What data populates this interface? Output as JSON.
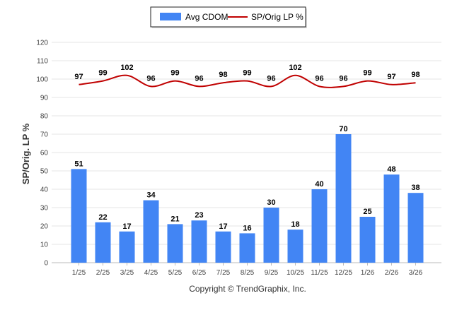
{
  "chart_data": {
    "type": "bar",
    "categories": [
      "1/25",
      "2/25",
      "3/25",
      "4/25",
      "5/25",
      "6/25",
      "7/25",
      "8/25",
      "9/25",
      "10/25",
      "11/25",
      "12/25",
      "1/26",
      "2/26",
      "3/26"
    ],
    "series": [
      {
        "name": "Avg CDOM",
        "type": "bar",
        "color": "#4285f4",
        "values": [
          51,
          22,
          17,
          34,
          21,
          23,
          17,
          16,
          30,
          18,
          40,
          70,
          25,
          48,
          38
        ]
      },
      {
        "name": "SP/Orig LP %",
        "type": "line",
        "color": "#c00000",
        "values": [
          97,
          99,
          102,
          96,
          99,
          96,
          98,
          99,
          96,
          102,
          96,
          96,
          99,
          97,
          98
        ]
      }
    ],
    "ylabel": "SP/Orig. LP %",
    "xlabel": "",
    "ylim": [
      0,
      120
    ],
    "yticks": [
      0,
      10,
      20,
      30,
      40,
      50,
      60,
      70,
      80,
      90,
      100,
      110,
      120
    ],
    "legend_position": "top-center",
    "grid": true
  },
  "footer": {
    "copyright": "Copyright © TrendGraphix, Inc."
  }
}
